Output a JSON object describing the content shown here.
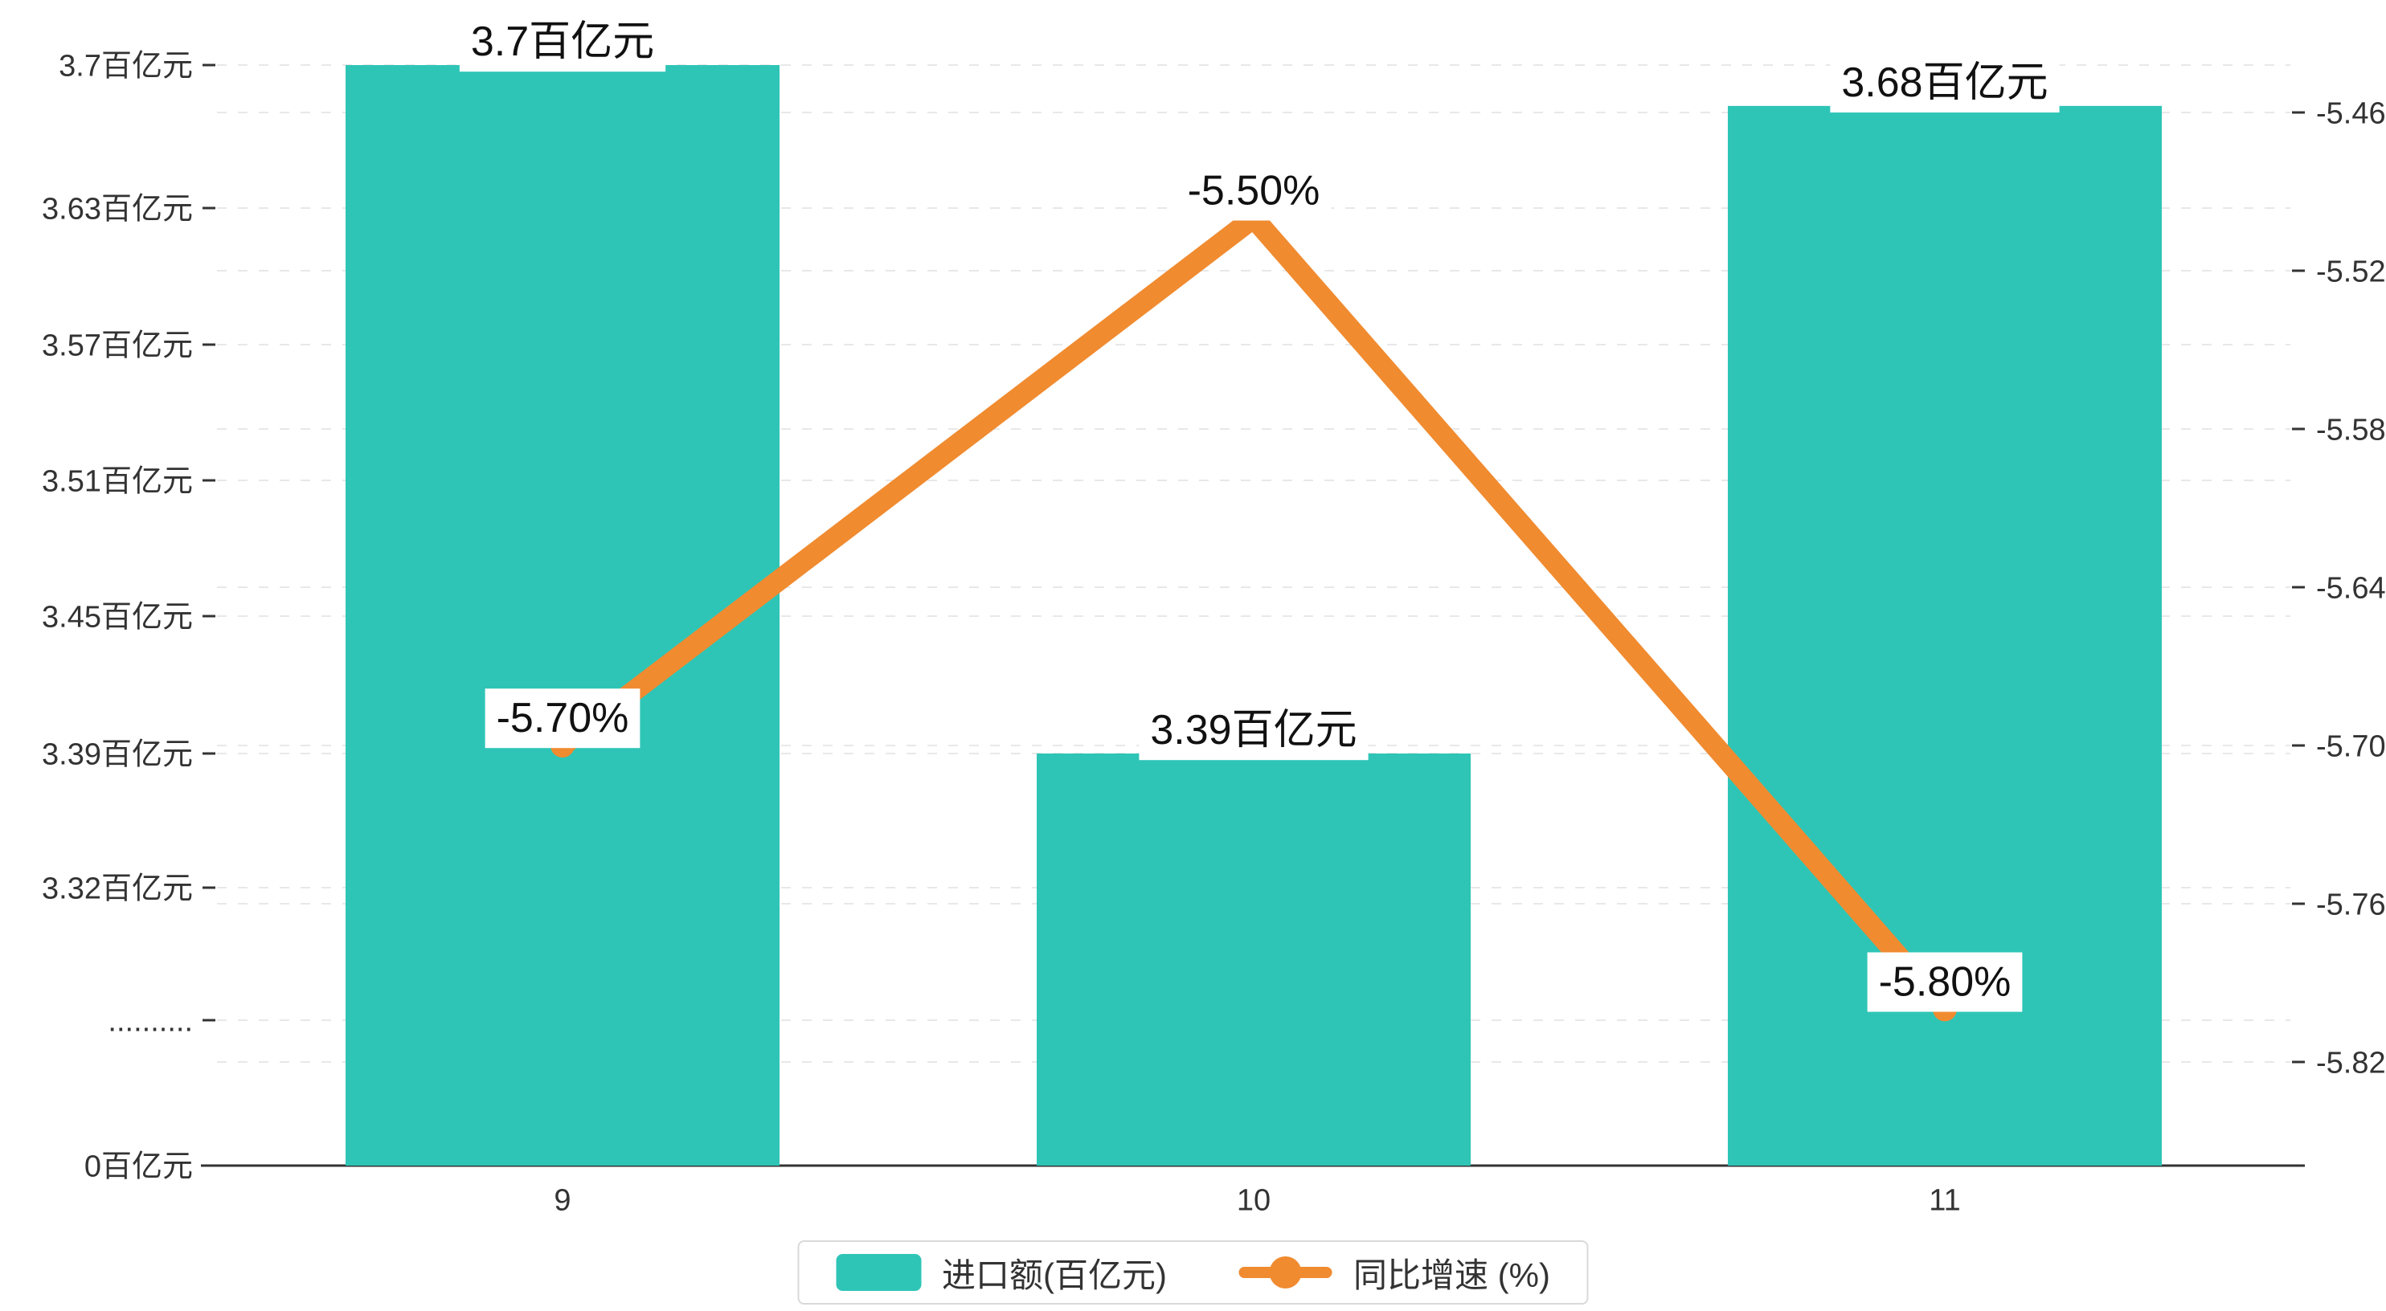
{
  "chart_data": {
    "type": "bar+line",
    "categories": [
      "9",
      "10",
      "11"
    ],
    "series": [
      {
        "name": "进口额(百亿元)",
        "type": "bar",
        "axis": "left",
        "values": [
          3.7,
          3.39,
          3.68
        ],
        "labels": [
          "3.7百亿元",
          "3.39百亿元",
          "3.68百亿元"
        ]
      },
      {
        "name": "同比增速 (%)",
        "type": "line",
        "axis": "right",
        "values": [
          -5.7,
          -5.5,
          -5.8
        ],
        "labels": [
          "-5.70%",
          "-5.50%",
          "-5.80%"
        ]
      }
    ],
    "left_axis": {
      "tick_labels": [
        "0百亿元",
        "..........",
        "3.32百亿元",
        "3.39百亿元",
        "3.45百亿元",
        "3.51百亿元",
        "3.57百亿元",
        "3.63百亿元",
        "3.7百亿元"
      ],
      "tick_values": [
        0,
        null,
        3.32,
        3.39,
        3.45,
        3.51,
        3.57,
        3.63,
        3.7
      ],
      "axis_break": true
    },
    "right_axis": {
      "tick_labels": [
        "-5.46",
        "-5.52",
        "-5.58",
        "-5.64",
        "-5.70",
        "-5.76",
        "-5.82"
      ],
      "min": -5.82,
      "max": -5.46
    },
    "grid": "dashed-horizontal",
    "legend_position": "bottom-center",
    "title": "",
    "xlabel": "",
    "ylabel_left": "进口额(百亿元)",
    "ylabel_right": "同比增速 (%)"
  },
  "legend": {
    "items": [
      {
        "label": "进口额(百亿元)",
        "marker": "bar"
      },
      {
        "label": "同比增速 (%)",
        "marker": "line-dot"
      }
    ]
  },
  "colors": {
    "bar": "#2EC5B7",
    "line": "#F08B30",
    "grid": "#E8E8E8",
    "axis_line": "#333333",
    "tick_text": "#333333",
    "label_text": "#111111",
    "label_bg": "#FFFFFF",
    "legend_border": "#D9D9D9",
    "background": "#FFFFFF"
  }
}
